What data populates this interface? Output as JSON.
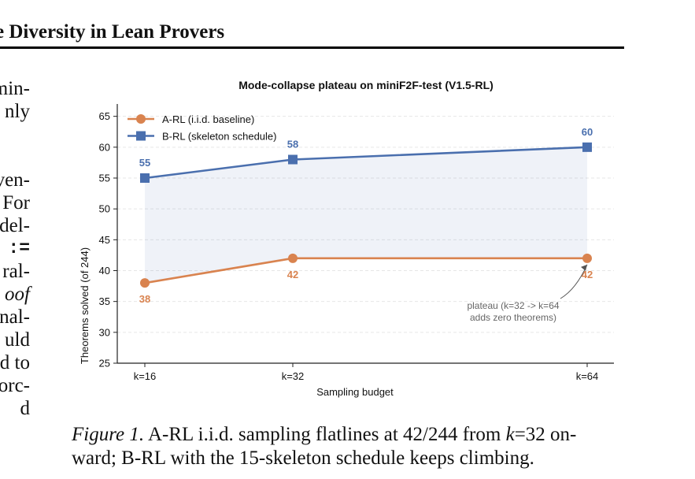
{
  "header": {
    "title": "e Diversity in Lean Provers"
  },
  "body_lines": [
    {
      "text": "min-"
    },
    {
      "text": "nly"
    },
    {
      "text": ""
    },
    {
      "text": ""
    },
    {
      "text": "ven-"
    },
    {
      "text": "For"
    },
    {
      "text": "del-"
    },
    {
      "text": ":=",
      "style": "mono"
    },
    {
      "text": "ral-"
    },
    {
      "text": "oof",
      "style": "ital"
    },
    {
      "text": "nal-"
    },
    {
      "text": "uld"
    },
    {
      "text": "d to"
    },
    {
      "text": "orc-"
    },
    {
      "text": "d"
    }
  ],
  "chart_data": {
    "type": "line",
    "title": "Mode-collapse plateau on miniF2F-test (V1.5-RL)",
    "xlabel": "Sampling budget",
    "ylabel": "Theorems solved (of 244)",
    "x_values": [
      16,
      32,
      64
    ],
    "categories": [
      "k=16",
      "k=32",
      "k=64"
    ],
    "ylim": [
      25,
      67
    ],
    "yticks": [
      25,
      30,
      35,
      40,
      45,
      50,
      55,
      60,
      65
    ],
    "grid": true,
    "legend_position": "top-left",
    "series": [
      {
        "name": "A-RL (i.i.d. baseline)",
        "values": [
          38,
          42,
          42
        ],
        "color": "#d9834f",
        "marker": "circle",
        "label_position": "below"
      },
      {
        "name": "B-RL (skeleton schedule)",
        "values": [
          55,
          58,
          60
        ],
        "color": "#4a6fae",
        "marker": "square",
        "label_position": "above"
      }
    ],
    "fill_between": {
      "color": "#4a6fae",
      "opacity": 0.09
    },
    "annotation": {
      "lines": [
        "plateau (k=32 -> k=64",
        "adds zero theorems)"
      ],
      "arrow_target_x": 64,
      "arrow_target_y": 42
    }
  },
  "caption": {
    "figure_label": "Figure 1.",
    "line1_pre": "A-RL i.i.d. sampling flatlines at 42/244 from ",
    "line1_k": "k",
    "line1_post": "=32 on-",
    "line2": "ward; B-RL with the 15-skeleton schedule keeps climbing."
  }
}
